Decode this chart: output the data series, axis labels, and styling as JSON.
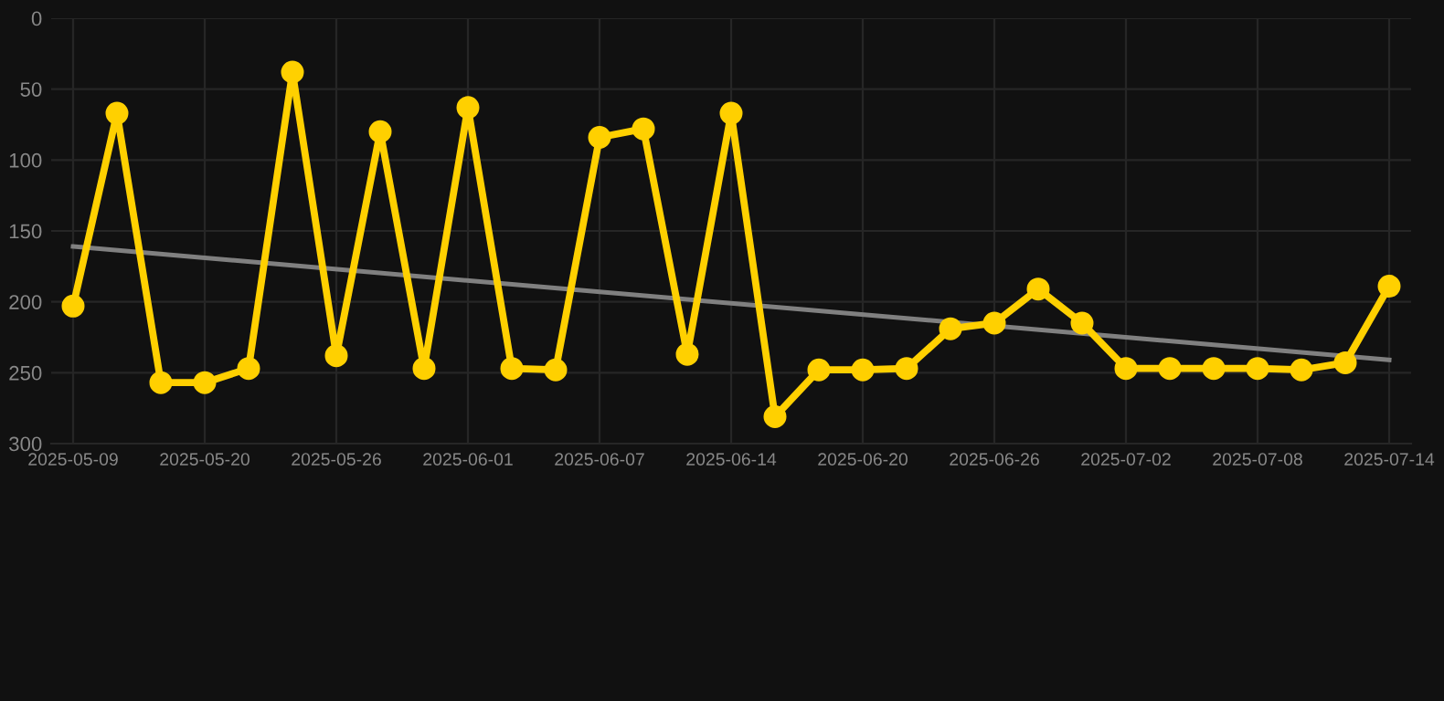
{
  "chart_data": {
    "type": "line",
    "categories": [
      "2025-05-09",
      null,
      null,
      "2025-05-20",
      null,
      null,
      "2025-05-26",
      null,
      null,
      "2025-06-01",
      null,
      null,
      "2025-06-07",
      null,
      null,
      "2025-06-14",
      null,
      null,
      "2025-06-20",
      null,
      null,
      "2025-06-26",
      null,
      null,
      "2025-07-02",
      null,
      null,
      "2025-07-08",
      null,
      null,
      "2025-07-14"
    ],
    "series": [
      {
        "color": "#ffd000",
        "marker": "circle",
        "values": [
          203,
          67,
          257,
          257,
          247,
          38,
          238,
          80,
          247,
          63,
          247,
          248,
          84,
          78,
          237,
          67,
          281,
          248,
          248,
          247,
          219,
          215,
          191,
          215,
          247,
          247,
          247,
          247,
          248,
          243,
          189
        ]
      },
      {
        "color": "#808080",
        "marker": "none",
        "values": [
          161,
          null,
          null,
          null,
          null,
          null,
          null,
          null,
          null,
          null,
          null,
          null,
          null,
          null,
          null,
          null,
          null,
          null,
          null,
          null,
          null,
          null,
          null,
          null,
          null,
          null,
          null,
          null,
          null,
          null,
          241
        ]
      }
    ],
    "ylim": [
      300,
      0
    ],
    "yticks": [
      0,
      50,
      100,
      150,
      200,
      250,
      300
    ],
    "grid": true,
    "line_style": "solid",
    "legend": false
  }
}
